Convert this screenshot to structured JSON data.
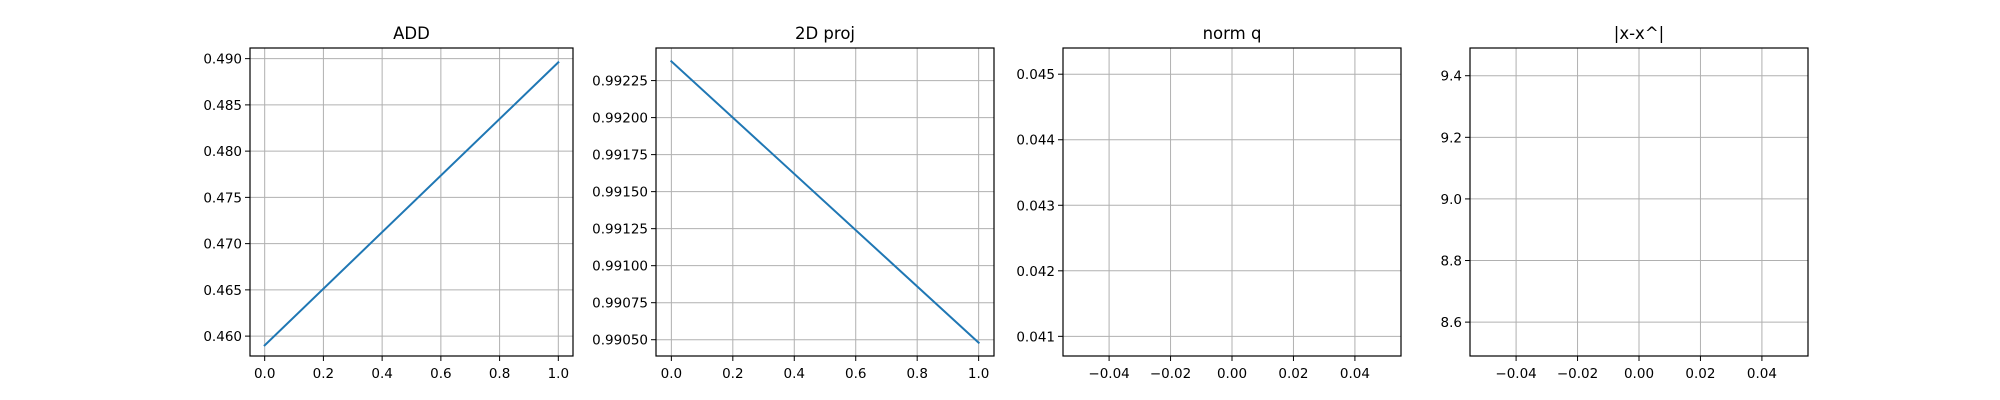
{
  "chart_data": [
    {
      "type": "line",
      "title": "ADD",
      "xlabel": "",
      "ylabel": "",
      "xlim": [
        -0.05,
        1.05
      ],
      "ylim": [
        0.45785,
        0.49115
      ],
      "xticks": [
        0.0,
        0.2,
        0.4,
        0.6,
        0.8,
        1.0
      ],
      "xtick_labels": [
        "0.0",
        "0.2",
        "0.4",
        "0.6",
        "0.8",
        "1.0"
      ],
      "yticks": [
        0.46,
        0.465,
        0.47,
        0.475,
        0.48,
        0.485,
        0.49
      ],
      "ytick_labels": [
        "0.460",
        "0.465",
        "0.470",
        "0.475",
        "0.480",
        "0.485",
        "0.490"
      ],
      "grid": true,
      "series": [
        {
          "x": [
            0,
            1
          ],
          "y": [
            0.459,
            0.4896
          ]
        }
      ]
    },
    {
      "type": "line",
      "title": "2D proj",
      "xlabel": "",
      "ylabel": "",
      "xlim": [
        -0.05,
        1.05
      ],
      "ylim": [
        0.99039,
        0.99247
      ],
      "xticks": [
        0.0,
        0.2,
        0.4,
        0.6,
        0.8,
        1.0
      ],
      "xtick_labels": [
        "0.0",
        "0.2",
        "0.4",
        "0.6",
        "0.8",
        "1.0"
      ],
      "yticks": [
        0.9905,
        0.99075,
        0.991,
        0.99125,
        0.9915,
        0.99175,
        0.992,
        0.99225
      ],
      "ytick_labels": [
        "0.99050",
        "0.99075",
        "0.99100",
        "0.99125",
        "0.99150",
        "0.99175",
        "0.99200",
        "0.99225"
      ],
      "grid": true,
      "series": [
        {
          "x": [
            0,
            1
          ],
          "y": [
            0.99238,
            0.99048
          ]
        }
      ]
    },
    {
      "type": "line",
      "title": "norm q",
      "xlabel": "",
      "ylabel": "",
      "xlim": [
        -0.055,
        0.055
      ],
      "ylim": [
        0.0407,
        0.0454
      ],
      "xticks": [
        -0.04,
        -0.02,
        0.0,
        0.02,
        0.04
      ],
      "xtick_labels": [
        "−0.04",
        "−0.02",
        "0.00",
        "0.02",
        "0.04"
      ],
      "yticks": [
        0.041,
        0.042,
        0.043,
        0.044,
        0.045
      ],
      "ytick_labels": [
        "0.041",
        "0.042",
        "0.043",
        "0.044",
        "0.045"
      ],
      "grid": true,
      "series": []
    },
    {
      "type": "line",
      "title": "|x-x^|",
      "xlabel": "",
      "ylabel": "",
      "xlim": [
        -0.055,
        0.055
      ],
      "ylim": [
        8.49,
        9.49
      ],
      "xticks": [
        -0.04,
        -0.02,
        0.0,
        0.02,
        0.04
      ],
      "xtick_labels": [
        "−0.04",
        "−0.02",
        "0.00",
        "0.02",
        "0.04"
      ],
      "yticks": [
        8.6,
        8.8,
        9.0,
        9.2,
        9.4
      ],
      "ytick_labels": [
        "8.6",
        "8.8",
        "9.0",
        "9.2",
        "9.4"
      ],
      "grid": true,
      "series": []
    }
  ],
  "colors": {
    "series": "#1f77b4",
    "grid": "#b0b0b0",
    "axes": "#000000",
    "background": "#ffffff"
  }
}
